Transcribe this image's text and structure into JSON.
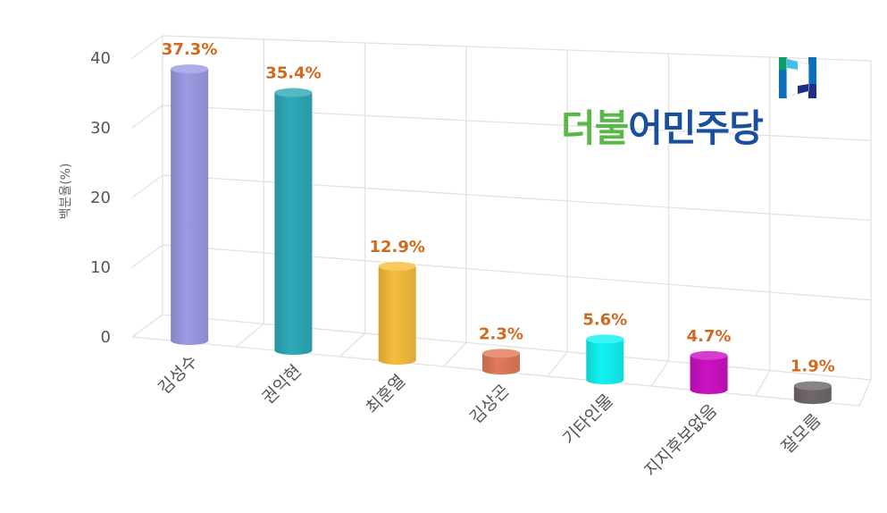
{
  "chart_data": {
    "type": "bar",
    "title": "",
    "xlabel": "",
    "ylabel": "백분율(%)",
    "ylim": [
      0,
      40
    ],
    "yticks": [
      0,
      10,
      20,
      30,
      40
    ],
    "grid": true,
    "categories": [
      "김성수",
      "권익현",
      "최훈열",
      "김상곤",
      "기타인물",
      "지지후보없음",
      "잘모름"
    ],
    "values": [
      37.3,
      35.4,
      12.9,
      2.3,
      5.6,
      4.7,
      1.9
    ],
    "data_labels": [
      "37.3%",
      "35.4%",
      "12.9%",
      "2.3%",
      "5.6%",
      "4.7%",
      "1.9%"
    ],
    "colors": [
      "#9b9be3",
      "#2faab8",
      "#f5bd3c",
      "#e07a5a",
      "#12f2f2",
      "#cc12c2",
      "#706868"
    ]
  },
  "logo": {
    "text_part1": "더불",
    "text_part2": "어민주당"
  }
}
